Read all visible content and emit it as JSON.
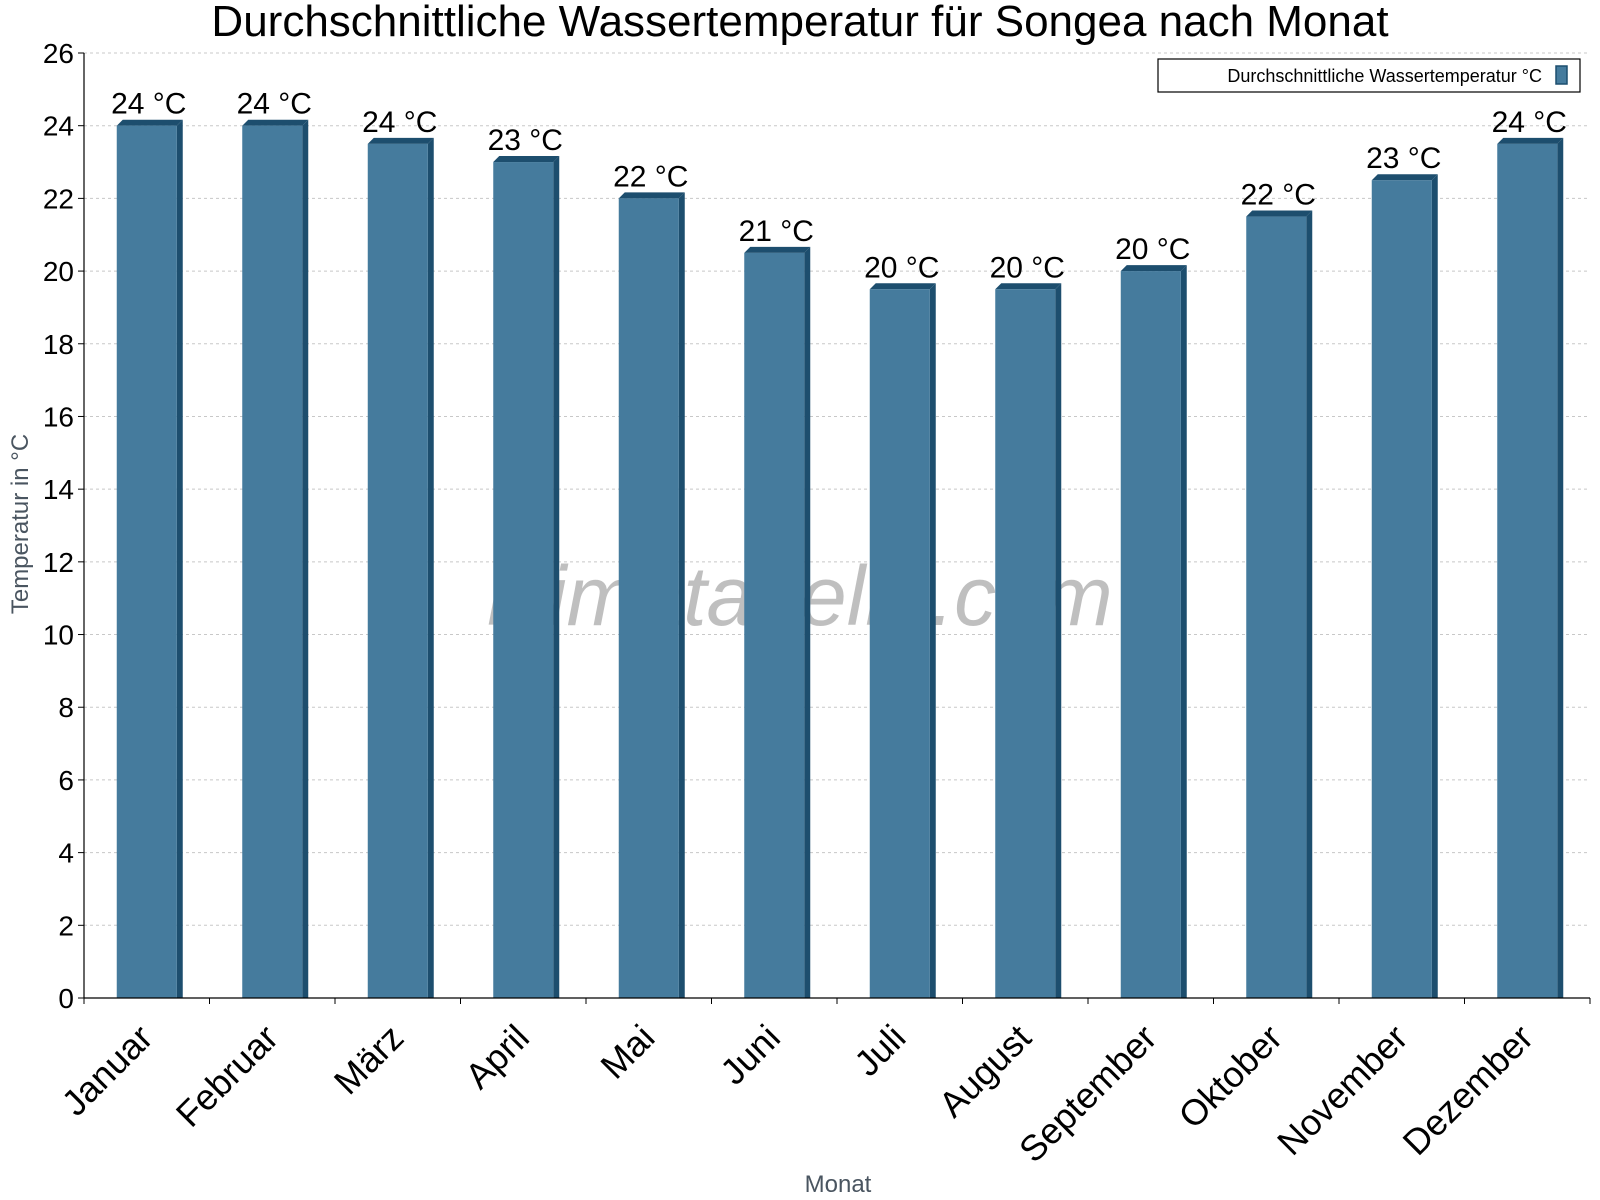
{
  "chart_data": {
    "type": "bar",
    "title": "Durchschnittliche Wassertemperatur für Songea nach Monat",
    "xlabel": "Monat",
    "ylabel": "Temperatur in °C",
    "ylim": [
      0,
      26
    ],
    "yticks": [
      0,
      2,
      4,
      6,
      8,
      10,
      12,
      14,
      16,
      18,
      20,
      22,
      24,
      26
    ],
    "grid": true,
    "legend_position": "top-right",
    "categories": [
      "Januar",
      "Februar",
      "März",
      "April",
      "Mai",
      "Juni",
      "Juli",
      "August",
      "September",
      "Oktober",
      "November",
      "Dezember"
    ],
    "series": [
      {
        "name": "Durchschnittliche Wassertemperatur °C",
        "color": "#457b9d",
        "edge_color": "#1d4e6e",
        "values": [
          24.0,
          24.0,
          23.5,
          23.0,
          22.0,
          20.5,
          19.5,
          19.5,
          20.0,
          21.5,
          22.5,
          23.5
        ],
        "labels": [
          "24 °C",
          "24 °C",
          "24 °C",
          "23 °C",
          "22 °C",
          "21 °C",
          "20 °C",
          "20 °C",
          "20 °C",
          "22 °C",
          "23 °C",
          "24 °C"
        ]
      }
    ]
  },
  "watermark": "klimatabelle.com"
}
